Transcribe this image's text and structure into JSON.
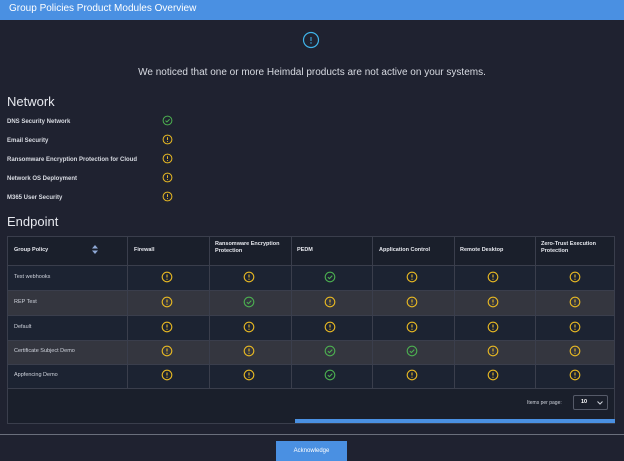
{
  "header": {
    "title": "Group Policies Product Modules Overview"
  },
  "message": "We noticed that one or more Heimdal products are not active on your systems.",
  "network": {
    "heading": "Network",
    "items": [
      "DNS Security Network",
      "Email Security",
      "Ransomware Encryption Protection for Cloud",
      "Network OS Deployment",
      "M365 User Security"
    ]
  },
  "endpoint": {
    "heading": "Endpoint",
    "table": {
      "columns": [
        "Group Policy",
        "Firewall",
        "Ransomware Encryption Protection",
        "PEDM",
        "Application Control",
        "Remote Desktop",
        "Zero-Trust Execution Protection"
      ],
      "rows": [
        "Test webhooks",
        "REP Test",
        "Default",
        "Certificate Subject Demo",
        "Appfencing Demo"
      ]
    },
    "items_per_page_label": "Items per page:",
    "items_per_page": "10"
  },
  "button": "Acknowledge"
}
